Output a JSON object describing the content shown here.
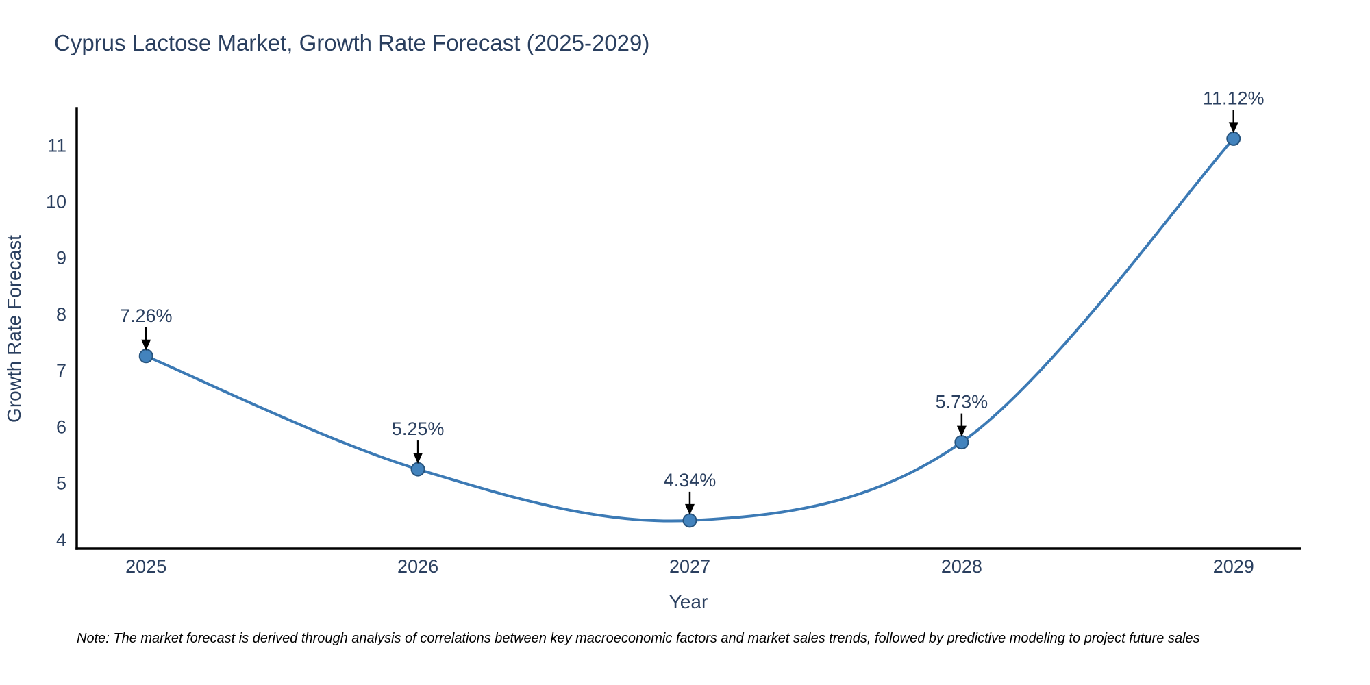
{
  "chart_data": {
    "type": "line",
    "title": "Cyprus Lactose Market, Growth Rate Forecast (2025-2029)",
    "xlabel": "Year",
    "ylabel": "Growth Rate Forecast",
    "x": [
      2025,
      2026,
      2027,
      2028,
      2029
    ],
    "y": [
      7.26,
      5.25,
      4.34,
      5.73,
      11.12
    ],
    "point_labels": [
      "7.26%",
      "5.25%",
      "4.34%",
      "5.73%",
      "11.12%"
    ],
    "x_ticks": [
      "2025",
      "2026",
      "2027",
      "2028",
      "2029"
    ],
    "y_ticks": [
      4,
      5,
      6,
      7,
      8,
      9,
      10,
      11
    ],
    "x_range": [
      2024.745,
      2029.245
    ],
    "y_range": [
      3.84,
      11.66
    ],
    "line_shape": "spline",
    "grid": false,
    "legend_position": "none",
    "colors": {
      "line": "#3c7ab5",
      "marker": "#4383bd",
      "marker_edge": "#27547e",
      "axis": "#000000",
      "text": "#2a3f5f",
      "annotation_arrow": "#000000",
      "note_text": "#000000",
      "background": "#ffffff"
    }
  },
  "note": {
    "text": "Note: The market forecast is derived through analysis of correlations between key macroeconomic factors and market sales trends, followed by predictive modeling to project future sales"
  }
}
